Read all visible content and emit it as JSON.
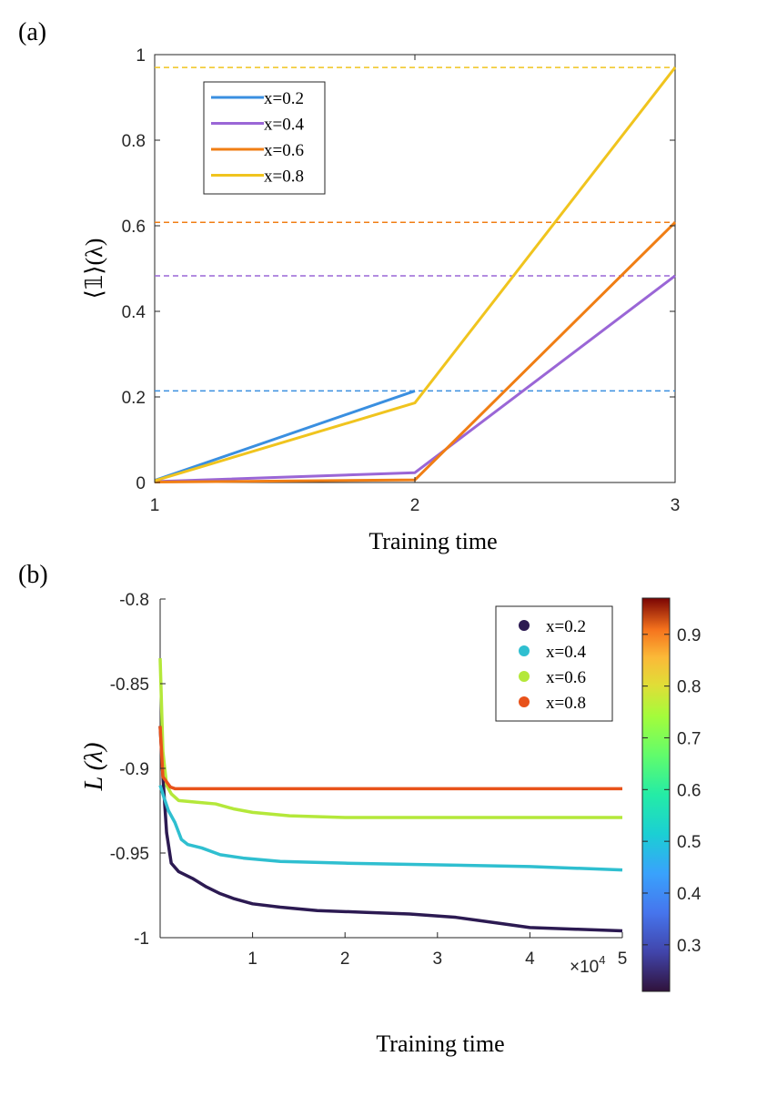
{
  "chart_data": [
    {
      "panel_label": "(a)",
      "type": "line",
      "xlabel": "Training time",
      "ylabel": "⟨𝟙⟩(λ)",
      "xlim": [
        1,
        3
      ],
      "ylim": [
        0,
        1
      ],
      "xticks": [
        "1",
        "2",
        "3"
      ],
      "yticks": [
        "0",
        "0.2",
        "0.4",
        "0.6",
        "0.8",
        "1"
      ],
      "legend_position": "top-left",
      "grid": false,
      "x": [
        1,
        2,
        3
      ],
      "series": [
        {
          "name": "x=0.2",
          "color": "#3a8fe0",
          "points": [
            [
              1,
              0.005
            ],
            [
              2,
              0.214
            ]
          ],
          "reference": 0.214
        },
        {
          "name": "x=0.4",
          "color": "#9a66d6",
          "points": [
            [
              1,
              0.002
            ],
            [
              2,
              0.023
            ],
            [
              3,
              0.483
            ]
          ],
          "reference": 0.483
        },
        {
          "name": "x=0.6",
          "color": "#f07e14",
          "points": [
            [
              1,
              0.001
            ],
            [
              2,
              0.006
            ],
            [
              3,
              0.608
            ]
          ],
          "reference": 0.608
        },
        {
          "name": "x=0.8",
          "color": "#f0c41e",
          "points": [
            [
              1,
              0.004
            ],
            [
              2,
              0.186
            ],
            [
              3,
              0.97
            ]
          ],
          "reference": 0.97
        }
      ]
    },
    {
      "panel_label": "(b)",
      "type": "line",
      "xlabel": "Training time",
      "ylabel": "L (λ)",
      "xlim": [
        0,
        50000
      ],
      "ylim": [
        -1,
        -0.8
      ],
      "xticks": [
        "1",
        "2",
        "3",
        "4",
        "5"
      ],
      "x_multiplier_base": "×10",
      "x_multiplier_exp": "4",
      "yticks": [
        "-1",
        "-0.95",
        "-0.9",
        "-0.85",
        "-0.8"
      ],
      "legend_position": "top-right",
      "grid": false,
      "colorbar": {
        "min": 0.21,
        "max": 0.97,
        "ticks": [
          "0.3",
          "0.4",
          "0.5",
          "0.6",
          "0.7",
          "0.8",
          "0.9"
        ]
      },
      "series": [
        {
          "name": "x=0.2",
          "color": "#2c1a52",
          "points": [
            [
              0,
              -0.875
            ],
            [
              300,
              -0.905
            ],
            [
              700,
              -0.938
            ],
            [
              1200,
              -0.956
            ],
            [
              2000,
              -0.961
            ],
            [
              3500,
              -0.965
            ],
            [
              5000,
              -0.97
            ],
            [
              6500,
              -0.974
            ],
            [
              8000,
              -0.977
            ],
            [
              10000,
              -0.98
            ],
            [
              13000,
              -0.982
            ],
            [
              17000,
              -0.984
            ],
            [
              22000,
              -0.985
            ],
            [
              27000,
              -0.986
            ],
            [
              32000,
              -0.988
            ],
            [
              36000,
              -0.991
            ],
            [
              40000,
              -0.994
            ],
            [
              45000,
              -0.995
            ],
            [
              50000,
              -0.996
            ]
          ]
        },
        {
          "name": "x=0.4",
          "color": "#2fbfd0",
          "points": [
            [
              0,
              -0.91
            ],
            [
              400,
              -0.917
            ],
            [
              900,
              -0.925
            ],
            [
              1600,
              -0.932
            ],
            [
              2300,
              -0.942
            ],
            [
              3000,
              -0.945
            ],
            [
              4500,
              -0.947
            ],
            [
              6500,
              -0.951
            ],
            [
              9000,
              -0.953
            ],
            [
              13000,
              -0.955
            ],
            [
              20000,
              -0.956
            ],
            [
              30000,
              -0.957
            ],
            [
              40000,
              -0.958
            ],
            [
              50000,
              -0.96
            ]
          ]
        },
        {
          "name": "x=0.6",
          "color": "#b4e83a",
          "points": [
            [
              0,
              -0.835
            ],
            [
              300,
              -0.89
            ],
            [
              700,
              -0.91
            ],
            [
              1200,
              -0.915
            ],
            [
              2000,
              -0.919
            ],
            [
              4000,
              -0.92
            ],
            [
              6000,
              -0.921
            ],
            [
              8000,
              -0.924
            ],
            [
              10000,
              -0.926
            ],
            [
              14000,
              -0.928
            ],
            [
              20000,
              -0.929
            ],
            [
              30000,
              -0.929
            ],
            [
              40000,
              -0.929
            ],
            [
              50000,
              -0.929
            ]
          ]
        },
        {
          "name": "x=0.8",
          "color": "#e8521a",
          "points": [
            [
              0,
              -0.875
            ],
            [
              300,
              -0.905
            ],
            [
              700,
              -0.908
            ],
            [
              1100,
              -0.911
            ],
            [
              1600,
              -0.912
            ],
            [
              5000,
              -0.912
            ],
            [
              20000,
              -0.912
            ],
            [
              35000,
              -0.912
            ],
            [
              50000,
              -0.912
            ]
          ]
        }
      ]
    }
  ]
}
